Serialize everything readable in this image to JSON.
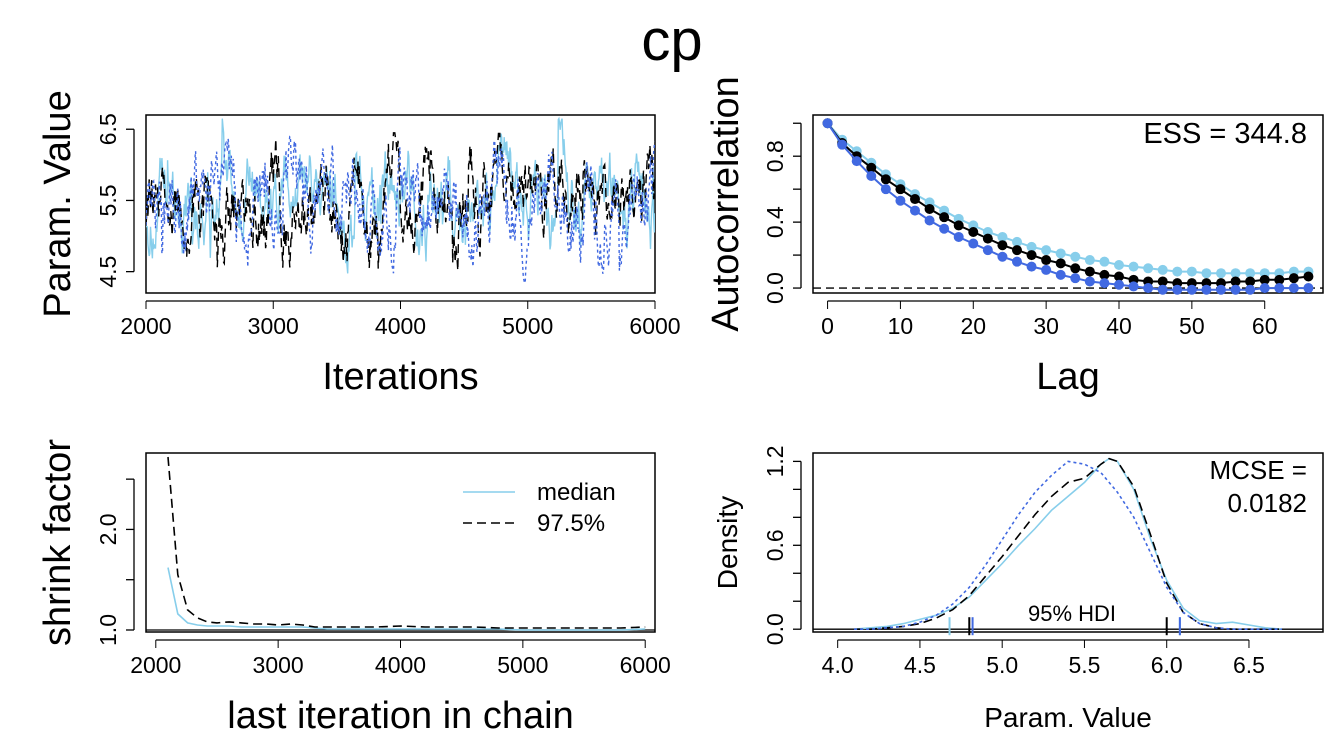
{
  "title": "cp",
  "chart_data": [
    {
      "type": "line",
      "panel": "trace",
      "xlabel": "Iterations",
      "ylabel": "Param. Value",
      "xlim": [
        2000,
        6000
      ],
      "ylim": [
        4.2,
        6.7
      ],
      "x_ticks": [
        "2000",
        "3000",
        "4000",
        "5000",
        "6000"
      ],
      "y_ticks": [
        "4.5",
        "5.5",
        "6.5"
      ],
      "series": [
        {
          "color": "#87ceeb",
          "linestyle": "solid",
          "x_range": [
            2000,
            6000
          ],
          "mean": 5.45,
          "min": 4.2,
          "max": 6.65
        },
        {
          "color": "#000000",
          "linestyle": "dashed",
          "x_range": [
            2000,
            6000
          ],
          "mean": 5.45,
          "min": 4.3,
          "max": 6.45
        },
        {
          "color": "#4169e1",
          "linestyle": "dotted",
          "x_range": [
            2000,
            6000
          ],
          "mean": 5.45,
          "min": 4.3,
          "max": 6.4
        }
      ]
    },
    {
      "type": "line",
      "panel": "autocorrelation",
      "xlabel": "Lag",
      "ylabel": "Autocorrelation",
      "xlim": [
        -2,
        68
      ],
      "ylim": [
        -0.03,
        1.05
      ],
      "x_ticks": [
        "0",
        "10",
        "20",
        "30",
        "40",
        "50",
        "60"
      ],
      "y_ticks": [
        "0.0",
        "0.4",
        "0.8"
      ],
      "annotation": "ESS = 344.8",
      "reference_line": 0,
      "x": [
        0,
        2,
        4,
        6,
        8,
        10,
        12,
        14,
        16,
        18,
        20,
        22,
        24,
        26,
        28,
        30,
        32,
        34,
        36,
        38,
        40,
        42,
        44,
        46,
        48,
        50,
        52,
        54,
        56,
        58,
        60,
        62,
        64,
        66
      ],
      "series": [
        {
          "color": "#87ceeb",
          "values": [
            1.0,
            0.9,
            0.83,
            0.76,
            0.69,
            0.63,
            0.57,
            0.52,
            0.47,
            0.42,
            0.38,
            0.34,
            0.31,
            0.28,
            0.25,
            0.23,
            0.21,
            0.19,
            0.17,
            0.16,
            0.14,
            0.13,
            0.12,
            0.11,
            0.1,
            0.1,
            0.09,
            0.09,
            0.09,
            0.09,
            0.09,
            0.09,
            0.1,
            0.1
          ]
        },
        {
          "color": "#000000",
          "values": [
            1.0,
            0.88,
            0.8,
            0.73,
            0.66,
            0.6,
            0.54,
            0.48,
            0.43,
            0.38,
            0.34,
            0.3,
            0.26,
            0.23,
            0.2,
            0.17,
            0.15,
            0.12,
            0.1,
            0.08,
            0.07,
            0.05,
            0.04,
            0.04,
            0.03,
            0.03,
            0.03,
            0.03,
            0.04,
            0.04,
            0.05,
            0.05,
            0.06,
            0.07
          ]
        },
        {
          "color": "#4169e1",
          "values": [
            1.0,
            0.87,
            0.77,
            0.68,
            0.6,
            0.53,
            0.47,
            0.41,
            0.36,
            0.31,
            0.27,
            0.23,
            0.19,
            0.16,
            0.13,
            0.11,
            0.08,
            0.06,
            0.04,
            0.03,
            0.02,
            0.01,
            0.0,
            -0.01,
            -0.01,
            -0.01,
            -0.01,
            -0.01,
            -0.01,
            -0.01,
            0.0,
            0.0,
            0.0,
            0.0
          ]
        }
      ]
    },
    {
      "type": "line",
      "panel": "gelman",
      "xlabel": "last iteration in chain",
      "ylabel": "shrink factor",
      "xlim": [
        1920,
        6080
      ],
      "ylim": [
        0.98,
        2.76
      ],
      "x_ticks": [
        "2000",
        "3000",
        "4000",
        "5000",
        "6000"
      ],
      "y_ticks": [
        "1.0",
        "2.0"
      ],
      "legend": {
        "placement": "top-right",
        "entries": [
          "median",
          "97.5%"
        ]
      },
      "x": [
        2100,
        2180,
        2260,
        2340,
        2420,
        2500,
        2600,
        2700,
        2800,
        2900,
        3000,
        3100,
        3200,
        3300,
        3400,
        3600,
        3800,
        4000,
        4200,
        4400,
        4600,
        4800,
        5000,
        5200,
        5400,
        5600,
        5800,
        6000
      ],
      "series": [
        {
          "name": "median",
          "color": "#87ceeb",
          "linestyle": "solid",
          "values": [
            1.62,
            1.16,
            1.07,
            1.05,
            1.04,
            1.04,
            1.04,
            1.03,
            1.03,
            1.03,
            1.03,
            1.03,
            1.03,
            1.02,
            1.01,
            1.01,
            1.01,
            1.01,
            1.01,
            1.01,
            1.01,
            1.01,
            1.0,
            1.0,
            1.0,
            1.0,
            1.0,
            1.01
          ]
        },
        {
          "name": "97.5%",
          "color": "#000000",
          "linestyle": "dashed",
          "values": [
            2.72,
            1.55,
            1.2,
            1.12,
            1.08,
            1.07,
            1.08,
            1.07,
            1.06,
            1.06,
            1.05,
            1.06,
            1.05,
            1.03,
            1.03,
            1.03,
            1.03,
            1.04,
            1.03,
            1.03,
            1.03,
            1.02,
            1.02,
            1.02,
            1.02,
            1.02,
            1.02,
            1.03
          ]
        }
      ]
    },
    {
      "type": "area",
      "panel": "density",
      "xlabel": "Param. Value",
      "ylabel": "Density",
      "xlim": [
        3.85,
        6.95
      ],
      "ylim": [
        -0.02,
        1.26
      ],
      "x_ticks": [
        "4.0",
        "4.5",
        "5.0",
        "5.5",
        "6.0",
        "6.5"
      ],
      "y_ticks": [
        "0.0",
        "0.6",
        "1.2"
      ],
      "annotation": [
        "MCSE =",
        "0.0182"
      ],
      "hdi_label": "95% HDI",
      "hdi": [
        {
          "color": "#87ceeb",
          "lower": 4.68,
          "upper": 6.08
        },
        {
          "color": "#000000",
          "lower": 4.8,
          "upper": 6.0
        },
        {
          "color": "#4169e1",
          "lower": 4.82,
          "upper": 6.08
        }
      ],
      "x": [
        4.1,
        4.2,
        4.3,
        4.4,
        4.5,
        4.6,
        4.7,
        4.8,
        4.9,
        5.0,
        5.1,
        5.2,
        5.3,
        5.4,
        5.5,
        5.6,
        5.65,
        5.7,
        5.8,
        5.9,
        6.0,
        6.1,
        6.2,
        6.3,
        6.4,
        6.5,
        6.6,
        6.7
      ],
      "series": [
        {
          "color": "#87ceeb",
          "linestyle": "solid",
          "values": [
            0.0,
            0.01,
            0.02,
            0.04,
            0.07,
            0.1,
            0.15,
            0.23,
            0.35,
            0.47,
            0.6,
            0.72,
            0.85,
            0.95,
            1.05,
            1.18,
            1.22,
            1.2,
            1.0,
            0.65,
            0.35,
            0.15,
            0.06,
            0.04,
            0.05,
            0.03,
            0.01,
            0.0
          ]
        },
        {
          "color": "#000000",
          "linestyle": "dashed",
          "values": [
            0.0,
            0.0,
            0.01,
            0.02,
            0.04,
            0.08,
            0.14,
            0.24,
            0.38,
            0.52,
            0.67,
            0.82,
            0.95,
            1.05,
            1.08,
            1.18,
            1.22,
            1.2,
            1.02,
            0.68,
            0.33,
            0.12,
            0.04,
            0.01,
            0.0,
            0.0,
            0.0,
            0.0
          ]
        },
        {
          "color": "#4169e1",
          "linestyle": "dotted",
          "values": [
            0.0,
            0.0,
            0.01,
            0.02,
            0.05,
            0.1,
            0.18,
            0.3,
            0.46,
            0.64,
            0.82,
            0.98,
            1.1,
            1.2,
            1.18,
            1.12,
            1.05,
            0.98,
            0.8,
            0.55,
            0.3,
            0.12,
            0.04,
            0.01,
            0.0,
            0.0,
            0.0,
            0.0
          ]
        }
      ]
    }
  ]
}
